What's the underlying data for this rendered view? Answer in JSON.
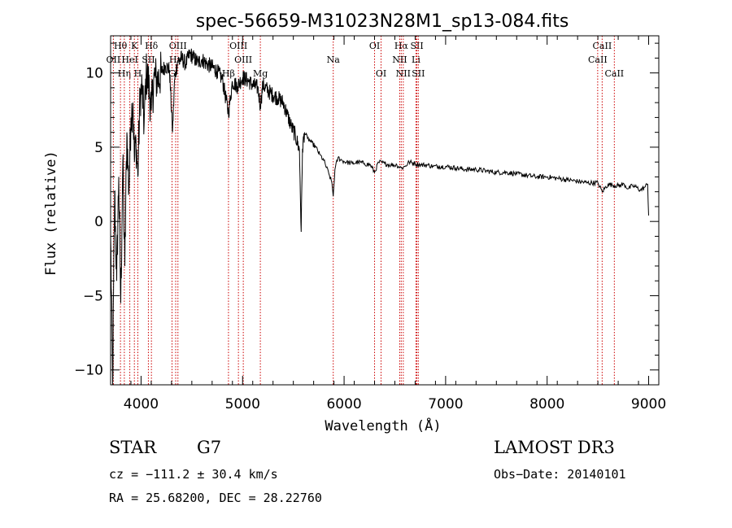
{
  "chart_data": {
    "type": "line",
    "title": "spec-56659-M31023N28M1_sp13-084.fits",
    "xlabel": "Wavelength (Å)",
    "ylabel": "Flux (relative)",
    "xlim": [
      3700,
      9100
    ],
    "ylim": [
      -11,
      12.5
    ],
    "xticks": [
      4000,
      5000,
      6000,
      7000,
      8000,
      9000
    ],
    "yticks": [
      -10,
      -5,
      0,
      5,
      10
    ],
    "series": [
      {
        "name": "spectrum",
        "x": [
          3700,
          3720,
          3740,
          3760,
          3780,
          3800,
          3820,
          3840,
          3860,
          3880,
          3900,
          3920,
          3935,
          3950,
          3968,
          3990,
          4010,
          4030,
          4050,
          4070,
          4101,
          4130,
          4160,
          4200,
          4240,
          4280,
          4310,
          4330,
          4360,
          4400,
          4440,
          4480,
          4520,
          4560,
          4600,
          4650,
          4700,
          4750,
          4800,
          4861,
          4900,
          4950,
          5000,
          5050,
          5100,
          5150,
          5175,
          5200,
          5250,
          5300,
          5350,
          5400,
          5440,
          5480,
          5520,
          5560,
          5577,
          5590,
          5610,
          5640,
          5680,
          5720,
          5760,
          5800,
          5850,
          5880,
          5893,
          5910,
          5940,
          5980,
          6020,
          6080,
          6140,
          6200,
          6260,
          6300,
          6340,
          6400,
          6460,
          6520,
          6563,
          6600,
          6640,
          6700,
          6760,
          6820,
          6880,
          6940,
          7000,
          7100,
          7200,
          7300,
          7400,
          7500,
          7600,
          7700,
          7800,
          7900,
          8000,
          8100,
          8200,
          8300,
          8400,
          8500,
          8542,
          8600,
          8700,
          8760,
          8800,
          8840,
          8880,
          8920,
          8960,
          8990,
          9000
        ],
        "values": [
          -1,
          -11,
          2,
          -4,
          3,
          -5.5,
          4,
          -3,
          6,
          2,
          7,
          8,
          4,
          5.5,
          3,
          8.5,
          9,
          6.5,
          10,
          9.5,
          7.5,
          9.8,
          9.5,
          10,
          10.5,
          10.2,
          6,
          9.5,
          10.8,
          11,
          10.6,
          11.3,
          11,
          10.7,
          10.9,
          10.6,
          10.4,
          10.1,
          9.6,
          7.3,
          9.4,
          9.1,
          9.7,
          9.5,
          9.2,
          9,
          7.8,
          9.2,
          8.8,
          8.5,
          8.3,
          8,
          7.2,
          6.4,
          5.8,
          4.8,
          -0.7,
          4.9,
          6,
          5.6,
          5.3,
          5,
          4.5,
          4.1,
          3.2,
          2.6,
          1.7,
          3.5,
          4.3,
          4.1,
          4,
          3.9,
          4,
          3.9,
          3.8,
          3.3,
          4,
          3.9,
          3.8,
          3.8,
          3.6,
          3.7,
          4,
          3.9,
          3.8,
          3.8,
          3.7,
          3.7,
          3.7,
          3.6,
          3.5,
          3.5,
          3.4,
          3.3,
          3.3,
          3.2,
          3.1,
          3,
          3,
          2.9,
          2.8,
          2.7,
          2.6,
          2.6,
          2,
          2.5,
          2.4,
          2.5,
          2.2,
          2.4,
          2.3,
          2.1,
          2.3,
          2.5,
          0.4
        ]
      }
    ],
    "emission_lines": [
      {
        "label": "Hθ",
        "wavelength": 3797,
        "row": 1
      },
      {
        "label": "OII",
        "wavelength": 3727,
        "row": 2
      },
      {
        "label": "Hη",
        "wavelength": 3835,
        "row": 3
      },
      {
        "label": "K",
        "wavelength": 3934,
        "row": 1
      },
      {
        "label": "HeI",
        "wavelength": 3889,
        "row": 2
      },
      {
        "label": "H",
        "wavelength": 3968,
        "row": 3
      },
      {
        "label": "SII",
        "wavelength": 4072,
        "row": 2
      },
      {
        "label": "Hδ",
        "wavelength": 4102,
        "row": 1
      },
      {
        "label": "OIII",
        "wavelength": 4363,
        "row": 1
      },
      {
        "label": "Hγ",
        "wavelength": 4341,
        "row": 2
      },
      {
        "label": "G",
        "wavelength": 4305,
        "row": 3
      },
      {
        "label": "OIII",
        "wavelength": 4959,
        "row": 1
      },
      {
        "label": "OIII",
        "wavelength": 5007,
        "row": 2
      },
      {
        "label": "Hβ",
        "wavelength": 4861,
        "row": 3
      },
      {
        "label": "Mg",
        "wavelength": 5175,
        "row": 3
      },
      {
        "label": "Na",
        "wavelength": 5893,
        "row": 2
      },
      {
        "label": "OI",
        "wavelength": 6300,
        "row": 1
      },
      {
        "label": "OI",
        "wavelength": 6364,
        "row": 3
      },
      {
        "label": "Hα",
        "wavelength": 6563,
        "row": 1
      },
      {
        "label": "NII",
        "wavelength": 6548,
        "row": 2
      },
      {
        "label": "NII",
        "wavelength": 6583,
        "row": 3
      },
      {
        "label": "SII",
        "wavelength": 6717,
        "row": 1
      },
      {
        "label": "Li",
        "wavelength": 6708,
        "row": 2
      },
      {
        "label": "SII",
        "wavelength": 6731,
        "row": 3
      },
      {
        "label": "CaII",
        "wavelength": 8542,
        "row": 1
      },
      {
        "label": "CaII",
        "wavelength": 8498,
        "row": 2
      },
      {
        "label": "CaII",
        "wavelength": 8662,
        "row": 3
      }
    ]
  },
  "info": {
    "object_class": "STAR",
    "subclass": "G7",
    "survey": "LAMOST DR3",
    "redshift_line": "cz = −111.2 ± 30.4 km/s",
    "obs_date_line": "Obs−Date: 20140101",
    "coords_line": "RA =  25.68200, DEC =  28.22760"
  }
}
